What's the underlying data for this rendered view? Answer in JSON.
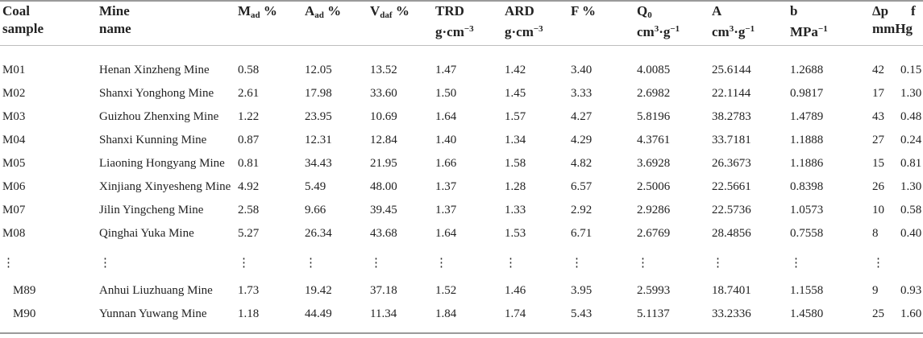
{
  "table": {
    "columns": [
      {
        "lines": [
          [
            {
              "text": "Coal"
            }
          ],
          [
            {
              "text": "sample"
            }
          ]
        ]
      },
      {
        "lines": [
          [
            {
              "text": "Mine"
            }
          ],
          [
            {
              "text": "name"
            }
          ]
        ]
      },
      {
        "lines": [
          [
            {
              "text": "M"
            },
            {
              "sub": "ad"
            },
            {
              "text": " %"
            }
          ]
        ]
      },
      {
        "lines": [
          [
            {
              "text": "A"
            },
            {
              "sub": "ad"
            },
            {
              "text": " %"
            }
          ]
        ]
      },
      {
        "lines": [
          [
            {
              "text": "V"
            },
            {
              "sub": "daf"
            },
            {
              "text": " %"
            }
          ]
        ]
      },
      {
        "lines": [
          [
            {
              "text": "TRD"
            }
          ],
          [
            {
              "text": "g·cm"
            },
            {
              "sup": "−3"
            }
          ]
        ]
      },
      {
        "lines": [
          [
            {
              "text": "ARD"
            }
          ],
          [
            {
              "text": "g·cm"
            },
            {
              "sup": "−3"
            }
          ]
        ]
      },
      {
        "lines": [
          [
            {
              "text": "F %"
            }
          ]
        ]
      },
      {
        "lines": [
          [
            {
              "text": "Q"
            },
            {
              "sub": "0"
            }
          ],
          [
            {
              "text": "cm"
            },
            {
              "sup": "3"
            },
            {
              "text": "·g"
            },
            {
              "sup": "−1"
            }
          ]
        ]
      },
      {
        "lines": [
          [
            {
              "text": "A"
            }
          ],
          [
            {
              "text": "cm"
            },
            {
              "sup": "3"
            },
            {
              "text": "·g"
            },
            {
              "sup": "−1"
            }
          ]
        ]
      },
      {
        "lines": [
          [
            {
              "text": "b"
            }
          ],
          [
            {
              "text": "MPa"
            },
            {
              "sup": "−1"
            }
          ]
        ]
      },
      {
        "lines": [
          [
            {
              "text": "Δp"
            }
          ],
          [
            {
              "text": "mmHg"
            }
          ]
        ]
      },
      {
        "lines": [
          [
            {
              "text": "f"
            }
          ]
        ]
      }
    ],
    "rows": [
      [
        "M01",
        "Henan Xinzheng Mine",
        "0.58",
        "12.05",
        "13.52",
        "1.47",
        "1.42",
        "3.40",
        "4.0085",
        "25.6144",
        "1.2688",
        "42",
        "0.15"
      ],
      [
        "M02",
        "Shanxi Yonghong Mine",
        "2.61",
        "17.98",
        "33.60",
        "1.50",
        "1.45",
        "3.33",
        "2.6982",
        "22.1144",
        "0.9817",
        "17",
        "1.30"
      ],
      [
        "M03",
        "Guizhou Zhenxing Mine",
        "1.22",
        "23.95",
        "10.69",
        "1.64",
        "1.57",
        "4.27",
        "5.8196",
        "38.2783",
        "1.4789",
        "43",
        "0.48"
      ],
      [
        "M04",
        "Shanxi Kunning Mine",
        "0.87",
        "12.31",
        "12.84",
        "1.40",
        "1.34",
        "4.29",
        "4.3761",
        "33.7181",
        "1.1888",
        "27",
        "0.24"
      ],
      [
        "M05",
        "Liaoning Hongyang Mine",
        "0.81",
        "34.43",
        "21.95",
        "1.66",
        "1.58",
        "4.82",
        "3.6928",
        "26.3673",
        "1.1886",
        "15",
        "0.81"
      ],
      [
        "M06",
        "Xinjiang Xinyesheng Mine",
        "4.92",
        "5.49",
        "48.00",
        "1.37",
        "1.28",
        "6.57",
        "2.5006",
        "22.5661",
        "0.8398",
        "26",
        "1.30"
      ],
      [
        "M07",
        "Jilin Yingcheng Mine",
        "2.58",
        "9.66",
        "39.45",
        "1.37",
        "1.33",
        "2.92",
        "2.9286",
        "22.5736",
        "1.0573",
        "10",
        "0.58"
      ],
      [
        "M08",
        "Qinghai Yuka Mine",
        "5.27",
        "26.34",
        "43.68",
        "1.64",
        "1.53",
        "6.71",
        "2.6769",
        "28.4856",
        "0.7558",
        "8",
        "0.40"
      ],
      [
        "⋮",
        "⋮",
        "⋮",
        "⋮",
        "⋮",
        "⋮",
        "⋮",
        "⋮",
        "⋮",
        "⋮",
        "⋮",
        "⋮"
      ],
      [
        "M89",
        "Anhui Liuzhuang Mine",
        "1.73",
        "19.42",
        "37.18",
        "1.52",
        "1.46",
        "3.95",
        "2.5993",
        "18.7401",
        "1.1558",
        "9",
        "0.93"
      ],
      [
        "M90",
        "Yunnan Yuwang Mine",
        "1.18",
        "44.49",
        "11.34",
        "1.84",
        "1.74",
        "5.43",
        "5.1137",
        "33.2336",
        "1.4580",
        "25",
        "1.60"
      ]
    ]
  }
}
